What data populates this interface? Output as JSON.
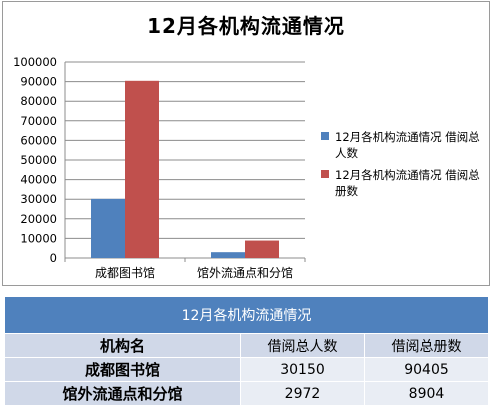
{
  "chart_data": {
    "type": "bar",
    "title": "12月各机构流通情况",
    "categories": [
      "成都图书馆",
      "馆外流通点和分馆"
    ],
    "series": [
      {
        "name": "12月各机构流通情况 借阅总人数",
        "values": [
          30150,
          2972
        ],
        "color": "#4f81bd"
      },
      {
        "name": "12月各机构流通情况 借阅总册数",
        "values": [
          90405,
          8904
        ],
        "color": "#c0504d"
      }
    ],
    "ylim": [
      0,
      100000
    ],
    "yticks": [
      "0",
      "10000",
      "20000",
      "30000",
      "40000",
      "50000",
      "60000",
      "70000",
      "80000",
      "90000",
      "100000"
    ],
    "grid": true,
    "legend_position": "right"
  },
  "table": {
    "title": "12月各机构流通情况",
    "headers": [
      "机构名",
      "借阅总人数",
      "借阅总册数"
    ],
    "rows": [
      [
        "成都图书馆",
        "30150",
        "90405"
      ],
      [
        "馆外流通点和分馆",
        "2972",
        "8904"
      ]
    ]
  }
}
